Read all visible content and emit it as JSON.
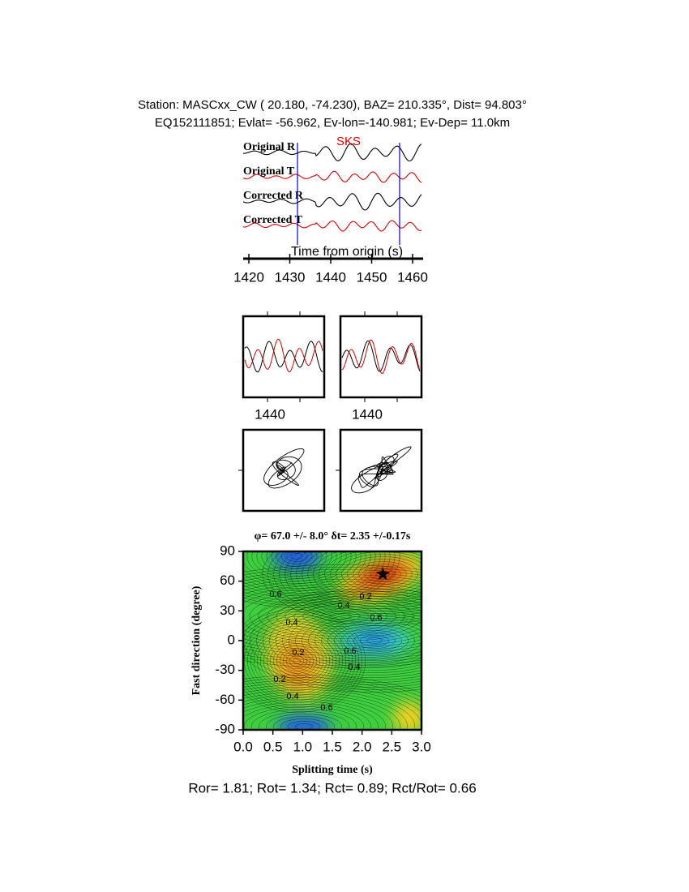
{
  "header": {
    "line1": "Station: MASCxx_CW (  20.180,  -74.230), BAZ=  210.335°, Dist=   94.803°",
    "line2": "EQ152111851; Evlat= -56.962, Ev-lon=-140.981; Ev-Dep= 11.0km"
  },
  "waveforms": {
    "traces": [
      "Original R",
      "Original T",
      "Corrected R",
      "Corrected T"
    ],
    "phase": "SKS",
    "xlabel": "Time from origin (s)",
    "xticks": [
      1420,
      1430,
      1440,
      1450,
      1460
    ]
  },
  "windows": {
    "ticks": [
      1440,
      1440
    ]
  },
  "grid_search": {
    "title": "φ= 67.0 +/- 8.0° δt= 2.35 +/-0.17s",
    "xlabel": "Splitting time (s)",
    "ylabel": "Fast direction (degree)",
    "xlim": [
      0,
      3
    ],
    "ylim": [
      -90,
      90
    ],
    "xticks": [
      {
        "value": 0,
        "label": "0.0"
      },
      0.5,
      {
        "value": 1,
        "label": "1.0"
      },
      1.5,
      {
        "value": 2,
        "label": "2.0"
      },
      2.5,
      {
        "value": 3,
        "label": "3.0"
      }
    ],
    "yticks": [
      90,
      60,
      30,
      0,
      -30,
      -60,
      -90
    ],
    "best_fit": {
      "dt": 2.35,
      "phi": 67
    },
    "contour_labels": [
      0.6,
      0.4,
      0.2,
      0.6,
      0.4,
      0.2,
      0.6,
      0.4,
      0.2,
      0.4,
      0.6
    ]
  },
  "footer": "Ror= 1.81; Rot= 1.34; Rct= 0.89; Rct/Rot= 0.66"
}
